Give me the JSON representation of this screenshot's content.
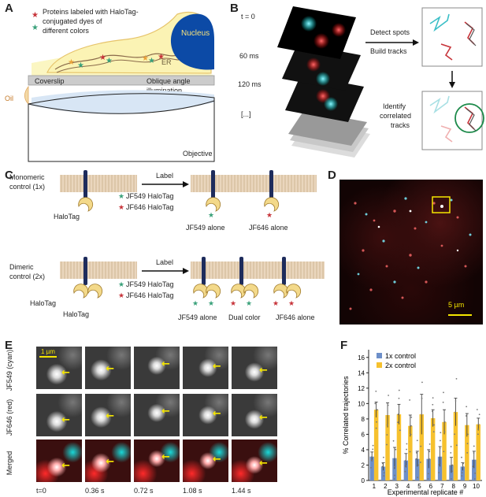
{
  "panels": {
    "A": {
      "letter": "A",
      "legend": [
        "Proteins labeled with HaloTag-",
        "conjugated dyes of",
        "different colors"
      ],
      "nucleus": "Nucleus",
      "er": "ER",
      "coverslip": "Coverslip",
      "oblique": [
        "Oblique angle",
        "illumination"
      ],
      "oil": "Oil",
      "objective": "Objective"
    },
    "B": {
      "letter": "B",
      "times": [
        "t = 0",
        "60 ms",
        "120 ms",
        "[...]"
      ],
      "detect": [
        "Detect spots",
        "Build tracks"
      ],
      "identify": [
        "Identify",
        "correlated",
        "tracks"
      ]
    },
    "C": {
      "letter": "C",
      "mono": [
        "Monomeric",
        "control (1x)"
      ],
      "dimer": [
        "Dimeric",
        "control (2x)"
      ],
      "label": "Label",
      "halotag": "HaloTag",
      "jf549": "JF549 HaloTag",
      "jf646": "JF646 HaloTag",
      "jf549_alone": "JF549 alone",
      "jf646_alone": "JF646 alone",
      "dual": "Dual color"
    },
    "D": {
      "letter": "D",
      "scale": "5 µm"
    },
    "E": {
      "letter": "E",
      "scale": "1 µm",
      "rows": [
        "JF549 (cyan)",
        "JF646 (red)",
        "Merged"
      ],
      "times": [
        "t=0",
        "0.36 s",
        "0.72 s",
        "1.08 s",
        "1.44 s"
      ]
    },
    "F": {
      "letter": "F",
      "legend_1x": "1x control",
      "legend_2x": "2x control",
      "color_1x": "#6d8fc9",
      "color_2x": "#f6c12e"
    }
  },
  "chart_data": {
    "type": "bar",
    "xlabel": "Experimental replicate #",
    "ylabel": "% Correlated trajectories",
    "ylim": [
      0,
      17
    ],
    "yticks": [
      0,
      2,
      4,
      6,
      8,
      10,
      12,
      14,
      16
    ],
    "categories": [
      "1",
      "2",
      "3",
      "4",
      "5",
      "6",
      "7",
      "8",
      "9",
      "10"
    ],
    "series": [
      {
        "name": "1x control",
        "values": [
          3.1,
          1.8,
          2.9,
          2.6,
          2.8,
          2.8,
          3.1,
          2.0,
          1.8,
          2.7
        ],
        "errors": [
          0.6,
          0.5,
          1.4,
          0.9,
          1.0,
          1.2,
          1.3,
          1.0,
          0.5,
          1.1
        ]
      },
      {
        "name": "2x control",
        "values": [
          9.2,
          8.5,
          8.6,
          7.1,
          8.6,
          8.1,
          7.6,
          8.9,
          7.2,
          7.3
        ],
        "errors": [
          1.0,
          1.6,
          1.3,
          1.4,
          2.6,
          1.1,
          1.6,
          1.8,
          1.5,
          0.8
        ]
      }
    ]
  }
}
